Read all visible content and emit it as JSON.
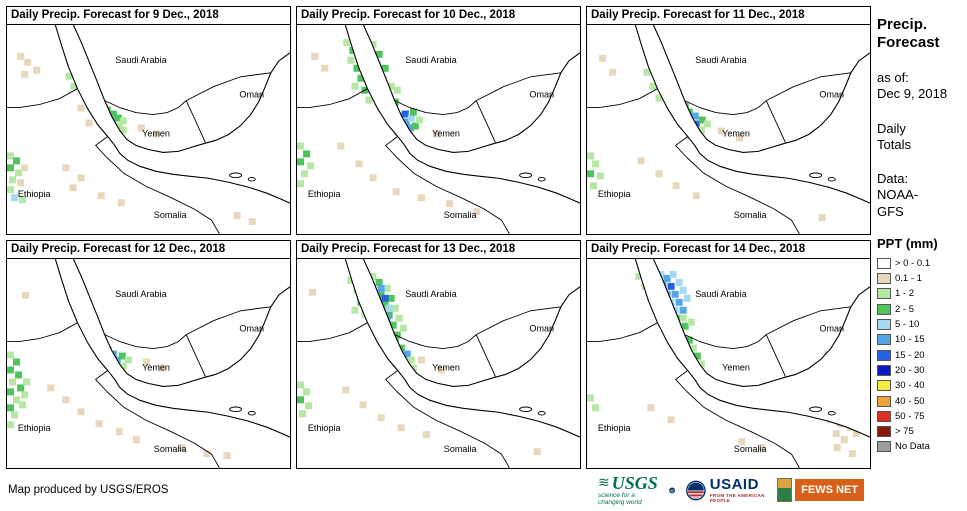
{
  "panels": [
    {
      "title": "Daily Precip. Forecast for 9 Dec., 2018",
      "cells": [
        [
          10,
          28,
          "t"
        ],
        [
          17,
          34,
          "t"
        ],
        [
          26,
          42,
          "t"
        ],
        [
          14,
          46,
          "t"
        ],
        [
          58,
          48,
          "g1"
        ],
        [
          63,
          58,
          "g1"
        ],
        [
          96,
          82,
          "g2"
        ],
        [
          102,
          86,
          "g2"
        ],
        [
          94,
          90,
          "g1"
        ],
        [
          101,
          93,
          "b2"
        ],
        [
          107,
          90,
          "g2"
        ],
        [
          108,
          98,
          "g1"
        ],
        [
          100,
          100,
          "g2"
        ],
        [
          112,
          93,
          "g1"
        ],
        [
          90,
          86,
          "g1"
        ],
        [
          104,
          104,
          "g2"
        ],
        [
          112,
          102,
          "g1"
        ],
        [
          70,
          80,
          "t"
        ],
        [
          78,
          95,
          "t"
        ],
        [
          0,
          128,
          "g1"
        ],
        [
          6,
          133,
          "g2"
        ],
        [
          0,
          140,
          "g2"
        ],
        [
          8,
          145,
          "g1"
        ],
        [
          2,
          152,
          "g1"
        ],
        [
          10,
          155,
          "t"
        ],
        [
          0,
          162,
          "g1"
        ],
        [
          14,
          140,
          "t"
        ],
        [
          4,
          170,
          "b1"
        ],
        [
          12,
          172,
          "g1"
        ],
        [
          55,
          140,
          "t"
        ],
        [
          70,
          150,
          "t"
        ],
        [
          62,
          160,
          "t"
        ],
        [
          90,
          168,
          "t"
        ],
        [
          110,
          175,
          "t"
        ],
        [
          130,
          100,
          "t"
        ],
        [
          145,
          106,
          "t"
        ],
        [
          225,
          188,
          "t"
        ],
        [
          240,
          194,
          "t"
        ]
      ]
    },
    {
      "title": "Daily Precip. Forecast for 10 Dec., 2018",
      "cells": [
        [
          14,
          28,
          "t"
        ],
        [
          24,
          40,
          "t"
        ],
        [
          46,
          14,
          "g1"
        ],
        [
          52,
          22,
          "g2"
        ],
        [
          50,
          32,
          "g1"
        ],
        [
          56,
          40,
          "g2"
        ],
        [
          60,
          50,
          "g2"
        ],
        [
          54,
          58,
          "g1"
        ],
        [
          64,
          62,
          "g2"
        ],
        [
          68,
          72,
          "g1"
        ],
        [
          72,
          16,
          "g1"
        ],
        [
          78,
          26,
          "g2"
        ],
        [
          76,
          36,
          "g1"
        ],
        [
          84,
          40,
          "g2"
        ],
        [
          82,
          52,
          "g2"
        ],
        [
          90,
          58,
          "g1"
        ],
        [
          88,
          68,
          "g2"
        ],
        [
          94,
          74,
          "g2"
        ],
        [
          96,
          62,
          "g1"
        ],
        [
          92,
          82,
          "g2"
        ],
        [
          98,
          88,
          "b2"
        ],
        [
          104,
          86,
          "b3"
        ],
        [
          97,
          96,
          "b4"
        ],
        [
          105,
          94,
          "b2"
        ],
        [
          103,
          102,
          "b2"
        ],
        [
          110,
          90,
          "b1"
        ],
        [
          109,
          100,
          "b2"
        ],
        [
          96,
          104,
          "b1"
        ],
        [
          112,
          84,
          "g2"
        ],
        [
          114,
          98,
          "g2"
        ],
        [
          108,
          108,
          "g1"
        ],
        [
          118,
          92,
          "g1"
        ],
        [
          0,
          118,
          "g1"
        ],
        [
          6,
          126,
          "g2"
        ],
        [
          0,
          134,
          "g2"
        ],
        [
          10,
          138,
          "g1"
        ],
        [
          4,
          146,
          "g1"
        ],
        [
          0,
          156,
          "g1"
        ],
        [
          40,
          118,
          "t"
        ],
        [
          58,
          136,
          "t"
        ],
        [
          72,
          150,
          "t"
        ],
        [
          95,
          164,
          "t"
        ],
        [
          120,
          170,
          "t"
        ],
        [
          148,
          176,
          "t"
        ],
        [
          135,
          106,
          "t"
        ],
        [
          175,
          184,
          "t"
        ]
      ]
    },
    {
      "title": "Daily Precip. Forecast for 11 Dec., 2018",
      "cells": [
        [
          12,
          30,
          "t"
        ],
        [
          22,
          44,
          "t"
        ],
        [
          68,
          30,
          "g1"
        ],
        [
          74,
          38,
          "g1"
        ],
        [
          80,
          50,
          "g2"
        ],
        [
          84,
          60,
          "g1"
        ],
        [
          88,
          70,
          "g2"
        ],
        [
          94,
          78,
          "g2"
        ],
        [
          56,
          44,
          "g1"
        ],
        [
          62,
          58,
          "g1"
        ],
        [
          68,
          70,
          "g1"
        ],
        [
          98,
          84,
          "g2"
        ],
        [
          104,
          88,
          "b2"
        ],
        [
          96,
          92,
          "g2"
        ],
        [
          105,
          96,
          "b3"
        ],
        [
          111,
          92,
          "g2"
        ],
        [
          102,
          102,
          "g2"
        ],
        [
          110,
          102,
          "g1"
        ],
        [
          116,
          96,
          "g1"
        ],
        [
          92,
          88,
          "g1"
        ],
        [
          99,
          108,
          "g1"
        ],
        [
          0,
          128,
          "g1"
        ],
        [
          5,
          136,
          "g1"
        ],
        [
          0,
          146,
          "g2"
        ],
        [
          10,
          148,
          "g1"
        ],
        [
          3,
          158,
          "g1"
        ],
        [
          50,
          133,
          "t"
        ],
        [
          68,
          146,
          "t"
        ],
        [
          85,
          158,
          "t"
        ],
        [
          105,
          168,
          "t"
        ],
        [
          130,
          103,
          "t"
        ],
        [
          148,
          110,
          "t"
        ],
        [
          255,
          126,
          "t"
        ],
        [
          230,
          190,
          "t"
        ]
      ]
    },
    {
      "title": "Daily Precip. Forecast for 12 Dec., 2018",
      "cells": [
        [
          15,
          33,
          "t"
        ],
        [
          0,
          93,
          "g1"
        ],
        [
          6,
          100,
          "g2"
        ],
        [
          0,
          108,
          "g2"
        ],
        [
          8,
          113,
          "g2"
        ],
        [
          2,
          120,
          "g1"
        ],
        [
          10,
          126,
          "g2"
        ],
        [
          0,
          130,
          "g2"
        ],
        [
          6,
          138,
          "g1"
        ],
        [
          0,
          146,
          "g2"
        ],
        [
          12,
          143,
          "g1"
        ],
        [
          4,
          153,
          "g1"
        ],
        [
          0,
          163,
          "g1"
        ],
        [
          16,
          120,
          "g1"
        ],
        [
          14,
          133,
          "g1"
        ],
        [
          74,
          52,
          "g1"
        ],
        [
          80,
          62,
          "g1"
        ],
        [
          86,
          72,
          "g2"
        ],
        [
          92,
          80,
          "g2"
        ],
        [
          97,
          88,
          "g2"
        ],
        [
          102,
          92,
          "b2"
        ],
        [
          98,
          98,
          "b3"
        ],
        [
          106,
          98,
          "b2"
        ],
        [
          104,
          106,
          "g2"
        ],
        [
          111,
          94,
          "g2"
        ],
        [
          112,
          104,
          "g1"
        ],
        [
          92,
          94,
          "g1"
        ],
        [
          117,
          98,
          "g1"
        ],
        [
          40,
          126,
          "t"
        ],
        [
          55,
          138,
          "t"
        ],
        [
          70,
          150,
          "t"
        ],
        [
          88,
          162,
          "t"
        ],
        [
          108,
          170,
          "t"
        ],
        [
          125,
          178,
          "t"
        ],
        [
          135,
          100,
          "t"
        ],
        [
          150,
          106,
          "t"
        ],
        [
          170,
          186,
          "t"
        ],
        [
          195,
          192,
          "t"
        ],
        [
          215,
          194,
          "t"
        ]
      ]
    },
    {
      "title": "Daily Precip. Forecast for 13 Dec., 2018",
      "cells": [
        [
          12,
          30,
          "t"
        ],
        [
          50,
          18,
          "g1"
        ],
        [
          56,
          28,
          "g1"
        ],
        [
          60,
          40,
          "g2"
        ],
        [
          54,
          48,
          "g1"
        ],
        [
          64,
          52,
          "g1"
        ],
        [
          72,
          14,
          "g1"
        ],
        [
          78,
          20,
          "g2"
        ],
        [
          72,
          28,
          "g2"
        ],
        [
          80,
          33,
          "g2"
        ],
        [
          86,
          26,
          "g1"
        ],
        [
          76,
          40,
          "g2"
        ],
        [
          84,
          43,
          "g2"
        ],
        [
          90,
          36,
          "g2"
        ],
        [
          80,
          50,
          "g2"
        ],
        [
          88,
          53,
          "g2"
        ],
        [
          94,
          46,
          "g1"
        ],
        [
          84,
          60,
          "g2"
        ],
        [
          92,
          63,
          "g2"
        ],
        [
          98,
          56,
          "g1"
        ],
        [
          88,
          70,
          "g2"
        ],
        [
          96,
          73,
          "g2"
        ],
        [
          102,
          66,
          "g1"
        ],
        [
          80,
          26,
          "b2"
        ],
        [
          84,
          36,
          "b3"
        ],
        [
          78,
          46,
          "b2"
        ],
        [
          88,
          46,
          "b1"
        ],
        [
          86,
          56,
          "b2"
        ],
        [
          94,
          80,
          "g2"
        ],
        [
          100,
          86,
          "g2"
        ],
        [
          98,
          94,
          "g2"
        ],
        [
          106,
          92,
          "b2"
        ],
        [
          104,
          100,
          "g2"
        ],
        [
          110,
          98,
          "g1"
        ],
        [
          112,
          106,
          "g1"
        ],
        [
          0,
          123,
          "g1"
        ],
        [
          6,
          130,
          "g1"
        ],
        [
          0,
          138,
          "g2"
        ],
        [
          8,
          144,
          "g1"
        ],
        [
          2,
          152,
          "g1"
        ],
        [
          45,
          128,
          "t"
        ],
        [
          62,
          143,
          "t"
        ],
        [
          80,
          156,
          "t"
        ],
        [
          100,
          166,
          "t"
        ],
        [
          125,
          173,
          "t"
        ],
        [
          140,
          108,
          "t"
        ],
        [
          120,
          98,
          "t"
        ],
        [
          235,
          190,
          "t"
        ]
      ]
    },
    {
      "title": "Daily Precip. Forecast for 14 Dec., 2018",
      "cells": [
        [
          48,
          14,
          "g1"
        ],
        [
          54,
          24,
          "g1"
        ],
        [
          66,
          18,
          "g1"
        ],
        [
          70,
          12,
          "b1"
        ],
        [
          76,
          16,
          "b2"
        ],
        [
          82,
          12,
          "b1"
        ],
        [
          72,
          22,
          "b2"
        ],
        [
          80,
          24,
          "b3"
        ],
        [
          88,
          20,
          "b1"
        ],
        [
          76,
          32,
          "b2"
        ],
        [
          84,
          32,
          "b2"
        ],
        [
          92,
          28,
          "b1"
        ],
        [
          80,
          40,
          "b1"
        ],
        [
          88,
          40,
          "b2"
        ],
        [
          96,
          36,
          "b1"
        ],
        [
          84,
          48,
          "b1"
        ],
        [
          92,
          48,
          "b2"
        ],
        [
          70,
          32,
          "g1"
        ],
        [
          74,
          42,
          "g1"
        ],
        [
          78,
          50,
          "g2"
        ],
        [
          86,
          56,
          "g2"
        ],
        [
          92,
          56,
          "g1"
        ],
        [
          94,
          64,
          "g2"
        ],
        [
          100,
          60,
          "g1"
        ],
        [
          90,
          72,
          "g1"
        ],
        [
          98,
          78,
          "g2"
        ],
        [
          102,
          86,
          "g1"
        ],
        [
          106,
          94,
          "g2"
        ],
        [
          110,
          102,
          "g1"
        ],
        [
          0,
          136,
          "g1"
        ],
        [
          5,
          146,
          "g1"
        ],
        [
          60,
          146,
          "t"
        ],
        [
          80,
          158,
          "t"
        ],
        [
          150,
          180,
          "t"
        ],
        [
          170,
          186,
          "t"
        ],
        [
          235,
          92,
          "t"
        ],
        [
          245,
          84,
          "t"
        ],
        [
          238,
          158,
          "t"
        ],
        [
          248,
          162,
          "t"
        ],
        [
          258,
          166,
          "t"
        ],
        [
          244,
          172,
          "t"
        ],
        [
          252,
          178,
          "t"
        ],
        [
          264,
          172,
          "t"
        ],
        [
          235,
          150,
          "t"
        ],
        [
          245,
          186,
          "t"
        ],
        [
          260,
          192,
          "t"
        ]
      ]
    }
  ],
  "map_labels": {
    "saudi_arabia": "Saudi Arabia",
    "oman": "Oman",
    "yemen": "Yemen",
    "ethiopia": "Ethiopia",
    "somalia": "Somalia"
  },
  "palette": {
    "t": "#E9D7BC",
    "g1": "#B5E8A5",
    "g2": "#4FC45A",
    "b1": "#A5D8F2",
    "b2": "#55A5EA",
    "b3": "#2563E3",
    "b4": "#0A18BE"
  },
  "sidebar": {
    "title": "Precip.\nForecast",
    "as_of": "as of:\nDec 9, 2018",
    "totals": "Daily\nTotals",
    "data_source": "Data:\nNOAA-\nGFS",
    "legend_title": "PPT (mm)",
    "legend": [
      {
        "label": "> 0 - 0.1",
        "color": "#FFFFFF"
      },
      {
        "label": "0.1 - 1",
        "color": "#E9D7BC"
      },
      {
        "label": "1 - 2",
        "color": "#B5E8A5"
      },
      {
        "label": "2 - 5",
        "color": "#4FC45A"
      },
      {
        "label": "5 - 10",
        "color": "#A5D8F2"
      },
      {
        "label": "10 - 15",
        "color": "#55A5EA"
      },
      {
        "label": "15 - 20",
        "color": "#2563E3"
      },
      {
        "label": "20 - 30",
        "color": "#0A18BE"
      },
      {
        "label": "30 - 40",
        "color": "#F3EC3F"
      },
      {
        "label": "40 - 50",
        "color": "#EFA33C"
      },
      {
        "label": "50 - 75",
        "color": "#DE2F20"
      },
      {
        "label": "> 75",
        "color": "#8E1509"
      },
      {
        "label": "No Data",
        "color": "#9C9C9C"
      }
    ]
  },
  "footer": {
    "credit": "Map produced by USGS/EROS"
  },
  "logos": {
    "usgs_text": "USGS",
    "usgs_tagline": "science for a changing world",
    "usaid_text": "USAID",
    "usaid_tagline": "FROM THE AMERICAN PEOPLE",
    "fewsnet_text": "FEWS NET"
  }
}
